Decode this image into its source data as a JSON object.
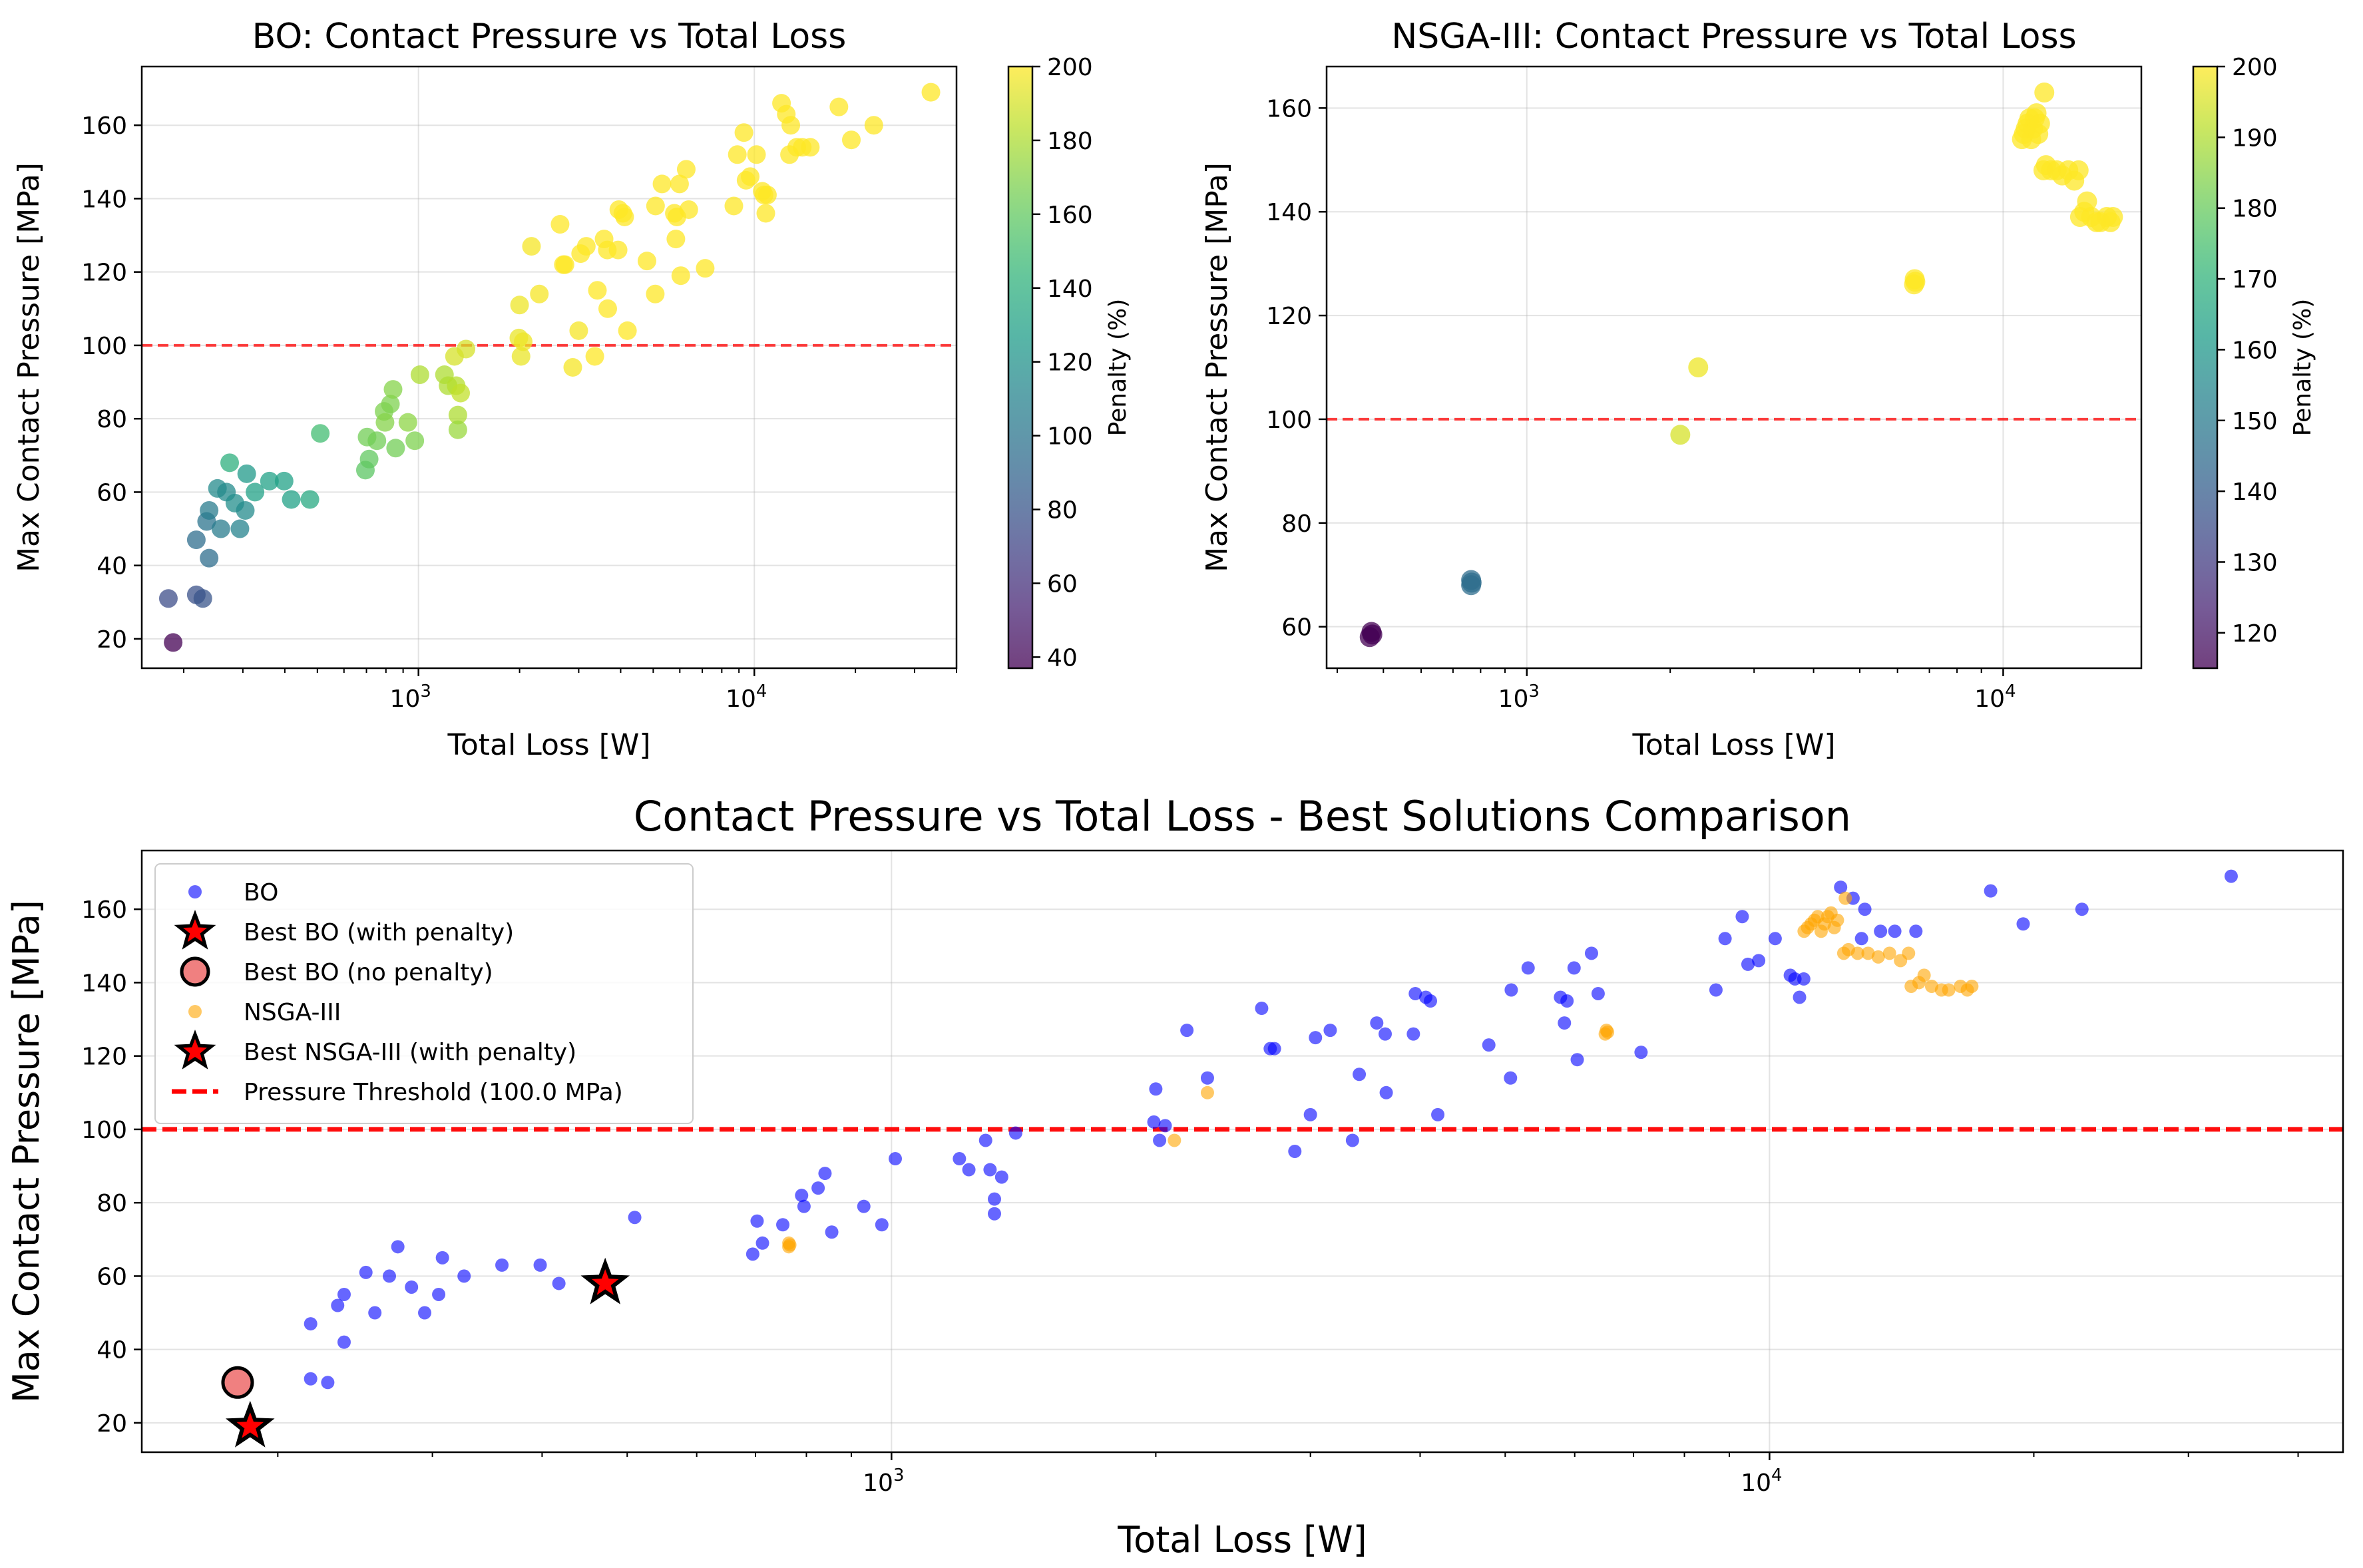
{
  "colors": {
    "bo": "#0000ff",
    "nsga": "#ffa500",
    "threshold": "#ff0000",
    "best_no_penalty": "#f08080",
    "star": "#ff0000"
  },
  "colormap": "viridis",
  "chart_data": [
    {
      "id": "bo",
      "type": "scatter",
      "title": "BO: Contact Pressure vs Total Loss",
      "xlabel": "Total Loss [W]",
      "ylabel": "Max Contact Pressure [MPa]",
      "xscale": "log",
      "xlim": [
        150,
        40000
      ],
      "ylim": [
        12,
        176
      ],
      "xticks": [
        {
          "value": 1000,
          "base": "10",
          "exp": "3"
        },
        {
          "value": 10000,
          "base": "10",
          "exp": "4"
        }
      ],
      "yticks": [
        20,
        40,
        60,
        80,
        100,
        120,
        140,
        160
      ],
      "grid": true,
      "threshold": 100,
      "colorbar": {
        "label": "Penalty (%)",
        "range": [
          37,
          200
        ],
        "ticks": [
          40,
          60,
          80,
          100,
          120,
          140,
          160,
          180,
          200
        ]
      },
      "points": [
        [
          186,
          19,
          37
        ],
        [
          180,
          31,
          75
        ],
        [
          218,
          32,
          78
        ],
        [
          228,
          31,
          80
        ],
        [
          218,
          47,
          95
        ],
        [
          238,
          42,
          95
        ],
        [
          234,
          52,
          100
        ],
        [
          238,
          55,
          105
        ],
        [
          258,
          50,
          105
        ],
        [
          252,
          61,
          115
        ],
        [
          268,
          60,
          115
        ],
        [
          284,
          57,
          118
        ],
        [
          294,
          50,
          110
        ],
        [
          274,
          68,
          140
        ],
        [
          308,
          65,
          125
        ],
        [
          305,
          55,
          115
        ],
        [
          326,
          60,
          130
        ],
        [
          360,
          63,
          130
        ],
        [
          398,
          63,
          130
        ],
        [
          418,
          58,
          130
        ],
        [
          475,
          58,
          135
        ],
        [
          510,
          76,
          150
        ],
        [
          695,
          66,
          158
        ],
        [
          713,
          69,
          160
        ],
        [
          703,
          75,
          165
        ],
        [
          752,
          74,
          165
        ],
        [
          790,
          82,
          168
        ],
        [
          795,
          79,
          170
        ],
        [
          855,
          72,
          165
        ],
        [
          825,
          84,
          168
        ],
        [
          840,
          88,
          170
        ],
        [
          930,
          79,
          172
        ],
        [
          975,
          74,
          168
        ],
        [
          1010,
          92,
          180
        ],
        [
          1195,
          92,
          180
        ],
        [
          1225,
          89,
          180
        ],
        [
          1295,
          89,
          182
        ],
        [
          1310,
          81,
          180
        ],
        [
          1310,
          77,
          175
        ],
        [
          1335,
          87,
          185
        ],
        [
          1385,
          99,
          190
        ],
        [
          1280,
          97,
          190
        ],
        [
          1990,
          102,
          195
        ],
        [
          2050,
          101,
          196
        ],
        [
          2000,
          111,
          196
        ],
        [
          2020,
          97,
          195
        ],
        [
          2290,
          114,
          198
        ],
        [
          2170,
          127,
          198
        ],
        [
          2640,
          133,
          200
        ],
        [
          2700,
          122,
          200
        ],
        [
          2730,
          122,
          200
        ],
        [
          2880,
          94,
          198
        ],
        [
          3000,
          104,
          198
        ],
        [
          3040,
          125,
          200
        ],
        [
          3160,
          127,
          200
        ],
        [
          3350,
          97,
          200
        ],
        [
          3410,
          115,
          200
        ],
        [
          3570,
          129,
          200
        ],
        [
          3650,
          126,
          200
        ],
        [
          3660,
          110,
          200
        ],
        [
          3930,
          126,
          200
        ],
        [
          3950,
          137,
          200
        ],
        [
          4110,
          135,
          200
        ],
        [
          4190,
          104,
          200
        ],
        [
          4060,
          136,
          200
        ],
        [
          4790,
          123,
          200
        ],
        [
          5070,
          114,
          200
        ],
        [
          5080,
          138,
          200
        ],
        [
          5310,
          144,
          200
        ],
        [
          5780,
          136,
          200
        ],
        [
          5840,
          129,
          200
        ],
        [
          5880,
          135,
          200
        ],
        [
          5990,
          144,
          200
        ],
        [
          6270,
          148,
          200
        ],
        [
          6380,
          137,
          200
        ],
        [
          6040,
          119,
          200
        ],
        [
          7140,
          121,
          200
        ],
        [
          8690,
          138,
          200
        ],
        [
          8900,
          152,
          200
        ],
        [
          9310,
          158,
          200
        ],
        [
          9450,
          145,
          200
        ],
        [
          9720,
          146,
          200
        ],
        [
          10150,
          152,
          200
        ],
        [
          10560,
          142,
          200
        ],
        [
          10690,
          141,
          200
        ],
        [
          10940,
          141,
          200
        ],
        [
          10820,
          136,
          200
        ],
        [
          12050,
          166,
          200
        ],
        [
          12450,
          163,
          200
        ],
        [
          12730,
          152,
          200
        ],
        [
          12840,
          160,
          200
        ],
        [
          13380,
          154,
          200
        ],
        [
          13890,
          154,
          200
        ],
        [
          14680,
          154,
          200
        ],
        [
          17860,
          165,
          200
        ],
        [
          19450,
          156,
          200
        ],
        [
          22690,
          160,
          200
        ],
        [
          33560,
          169,
          200
        ]
      ]
    },
    {
      "id": "nsga",
      "type": "scatter",
      "title": "NSGA-III: Contact Pressure vs Total Loss",
      "xlabel": "Total Loss [W]",
      "ylabel": "Max Contact Pressure [MPa]",
      "xscale": "log",
      "xlim": [
        380,
        19500
      ],
      "ylim": [
        52,
        168
      ],
      "xticks": [
        {
          "value": 1000,
          "base": "10",
          "exp": "3"
        },
        {
          "value": 10000,
          "base": "10",
          "exp": "4"
        }
      ],
      "yticks": [
        60,
        80,
        100,
        120,
        140,
        160
      ],
      "grid": true,
      "threshold": 100,
      "colorbar": {
        "label": "Penalty (%)",
        "range": [
          115,
          200
        ],
        "ticks": [
          120,
          130,
          140,
          150,
          160,
          170,
          180,
          190,
          200
        ]
      },
      "points": [
        [
          468,
          58,
          115
        ],
        [
          472,
          59,
          115
        ],
        [
          474,
          58.5,
          115
        ],
        [
          764,
          68,
          145
        ],
        [
          764,
          69,
          145
        ],
        [
          766,
          68.5,
          145
        ],
        [
          2100,
          97,
          195
        ],
        [
          2290,
          110,
          198
        ],
        [
          6500,
          126,
          200
        ],
        [
          6520,
          127,
          200
        ],
        [
          6540,
          126.5,
          200
        ],
        [
          10950,
          154,
          200
        ],
        [
          11050,
          155,
          200
        ],
        [
          11150,
          156,
          200
        ],
        [
          11250,
          157,
          200
        ],
        [
          11350,
          158,
          200
        ],
        [
          11450,
          154,
          200
        ],
        [
          11550,
          156,
          200
        ],
        [
          11650,
          158,
          200
        ],
        [
          11750,
          159,
          200
        ],
        [
          11850,
          155,
          200
        ],
        [
          11950,
          157,
          200
        ],
        [
          12200,
          163,
          200
        ],
        [
          12150,
          148,
          200
        ],
        [
          12300,
          149,
          200
        ],
        [
          12600,
          148,
          200
        ],
        [
          12950,
          148,
          200
        ],
        [
          13300,
          147,
          200
        ],
        [
          13700,
          148,
          200
        ],
        [
          14100,
          146,
          200
        ],
        [
          14400,
          148,
          200
        ],
        [
          14500,
          139,
          200
        ],
        [
          14800,
          140,
          200
        ],
        [
          15000,
          142,
          200
        ],
        [
          15300,
          139,
          200
        ],
        [
          15700,
          138,
          200
        ],
        [
          16000,
          138,
          200
        ],
        [
          16500,
          139,
          200
        ],
        [
          16800,
          138,
          200
        ],
        [
          17000,
          139,
          200
        ]
      ]
    },
    {
      "id": "comparison",
      "type": "scatter",
      "title": "Contact Pressure vs Total Loss - Best Solutions Comparison",
      "xlabel": "Total Loss [W]",
      "ylabel": "Max Contact Pressure [MPa]",
      "xscale": "log",
      "xlim": [
        140,
        45000
      ],
      "ylim": [
        12,
        176
      ],
      "xticks": [
        {
          "value": 1000,
          "base": "10",
          "exp": "3"
        },
        {
          "value": 10000,
          "base": "10",
          "exp": "4"
        }
      ],
      "yticks": [
        20,
        40,
        60,
        80,
        100,
        120,
        140,
        160
      ],
      "grid": true,
      "threshold": 100,
      "legend": {
        "placement": "upper-left",
        "entries": [
          "BO",
          "Best BO (with penalty)",
          "Best BO (no penalty)",
          "NSGA-III",
          "Best NSGA-III (with penalty)",
          "Pressure Threshold (100.0 MPa)"
        ]
      },
      "best_bo_with_penalty": [
        186,
        19
      ],
      "best_bo_no_penalty": [
        180,
        31
      ],
      "best_nsga_with_penalty": [
        472,
        58
      ]
    }
  ]
}
